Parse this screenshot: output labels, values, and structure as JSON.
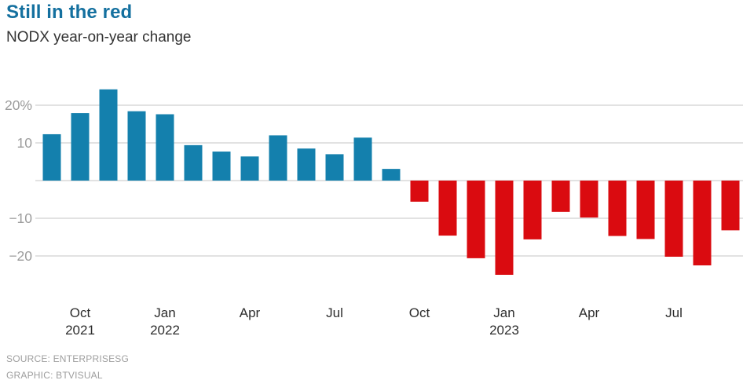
{
  "header": {
    "title": "Still in the red",
    "subtitle": "NODX year-on-year change",
    "title_color": "#14709f",
    "subtitle_color": "#333333"
  },
  "chart_data": {
    "type": "bar",
    "title": "Still in the red",
    "subtitle": "NODX year-on-year change",
    "unit": "percent",
    "categories": [
      "Sep 2021",
      "Oct 2021",
      "Nov 2021",
      "Dec 2021",
      "Jan 2022",
      "Feb 2022",
      "Mar 2022",
      "Apr 2022",
      "May 2022",
      "Jun 2022",
      "Jul 2022",
      "Aug 2022",
      "Sep 2022",
      "Oct 2022",
      "Nov 2022",
      "Dec 2022",
      "Jan 2023",
      "Feb 2023",
      "Mar 2023",
      "Apr 2023",
      "May 2023",
      "Jun 2023",
      "Jul 2023",
      "Aug 2023",
      "Sep 2023"
    ],
    "values": [
      12.3,
      17.9,
      24.2,
      18.4,
      17.6,
      9.4,
      7.7,
      6.4,
      12.0,
      8.5,
      7.0,
      11.4,
      3.1,
      -5.6,
      -14.6,
      -20.6,
      -25.0,
      -15.6,
      -8.3,
      -9.8,
      -14.7,
      -15.5,
      -20.2,
      -22.5,
      -13.2
    ],
    "xlabel": "",
    "ylabel": "",
    "ylim": [
      -27,
      26
    ],
    "grid": true,
    "legend": false,
    "gridline_values": [
      20,
      10,
      0,
      -10,
      -20
    ],
    "yticks": [
      {
        "value": 20,
        "label": "20%"
      },
      {
        "value": 10,
        "label": "10"
      },
      {
        "value": -10,
        "label": "−10"
      },
      {
        "value": -20,
        "label": "−20"
      }
    ],
    "xticks": [
      {
        "index": 1,
        "line1": "Oct",
        "line2": "2021"
      },
      {
        "index": 4,
        "line1": "Jan",
        "line2": "2022"
      },
      {
        "index": 7,
        "line1": "Apr",
        "line2": ""
      },
      {
        "index": 10,
        "line1": "Jul",
        "line2": ""
      },
      {
        "index": 13,
        "line1": "Oct",
        "line2": ""
      },
      {
        "index": 16,
        "line1": "Jan",
        "line2": "2023"
      },
      {
        "index": 19,
        "line1": "Apr",
        "line2": ""
      },
      {
        "index": 22,
        "line1": "Jul",
        "line2": ""
      }
    ],
    "colors": {
      "positive": "#1480ad",
      "negative": "#da0b10",
      "grid": "#d9d9d9",
      "y_label": "#9c9c9c",
      "x_label": "#2d2d2d"
    }
  },
  "footer": {
    "source": "SOURCE: ENTERPRISESG",
    "graphic": "GRAPHIC: BTVISUAL",
    "color": "#9e9e9e"
  }
}
